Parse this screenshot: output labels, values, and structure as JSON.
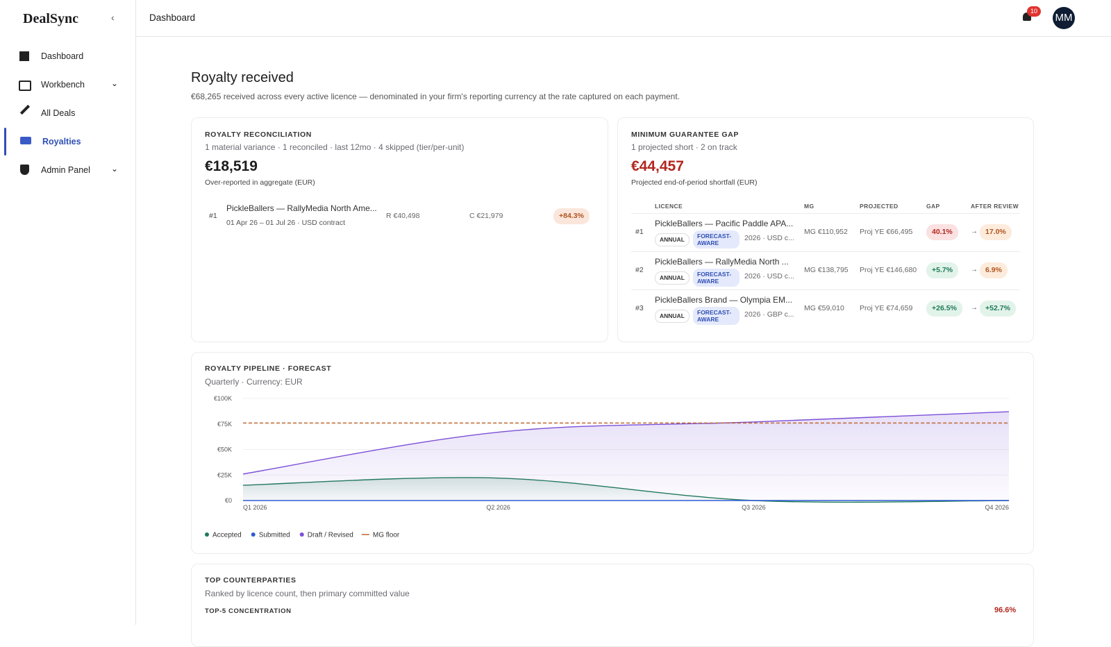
{
  "sidebar": {
    "brand": "DealSync",
    "items": [
      "Dashboard",
      "Workbench",
      "All Deals",
      "Royalties",
      "Admin Panel"
    ]
  },
  "header": {
    "title": "Dashboard",
    "notifications": 10,
    "avatar": "MM"
  },
  "page": {
    "title": "Royalty received",
    "subtitle": "€68,265 received across every active licence — denominated in your firm's reporting currency at the rate captured on each payment."
  },
  "reconciliation": {
    "heading": "ROYALTY RECONCILIATION",
    "summary": "1 material variance · 1 reconciled · last 12mo · 4 skipped (tier/per-unit)",
    "amount": "€18,519",
    "amount_note": "Over-reported in aggregate (EUR)",
    "rows": [
      {
        "rank": "#1",
        "title": "PickleBallers — RallyMedia North Ame...",
        "meta": "01 Apr 26 – 01 Jul 26 · USD contract",
        "reported": "R €40,498",
        "contracted": "C €21,979",
        "variance": "+84.3%"
      }
    ]
  },
  "mg_gap": {
    "heading": "MINIMUM GUARANTEE GAP",
    "summary": "1 projected short · 2 on track",
    "amount": "€44,457",
    "amount_note": "Projected end-of-period shortfall (EUR)",
    "columns": [
      "LICENCE",
      "MG",
      "PROJECTED",
      "GAP",
      "AFTER REVIEW"
    ],
    "rows": [
      {
        "rank": "#1",
        "title": "PickleBallers — Pacific Paddle APA...",
        "badges": [
          "ANNUAL",
          "FORECAST-AWARE"
        ],
        "meta": "2026 · USD c...",
        "mg": "MG €110,952",
        "projected": "Proj YE €66,495",
        "gap": "40.1%",
        "after": "17.0%"
      },
      {
        "rank": "#2",
        "title": "PickleBallers — RallyMedia North ...",
        "badges": [
          "ANNUAL",
          "FORECAST-AWARE"
        ],
        "meta": "2026 · USD c...",
        "mg": "MG €138,795",
        "projected": "Proj YE €146,680",
        "gap": "+5.7%",
        "after": "6.9%"
      },
      {
        "rank": "#3",
        "title": "PickleBallers Brand — Olympia EM...",
        "badges": [
          "ANNUAL",
          "FORECAST-AWARE"
        ],
        "meta": "2026 · GBP c...",
        "mg": "MG €59,010",
        "projected": "Proj YE €74,659",
        "gap": "+26.5%",
        "after": "+52.7%"
      }
    ]
  },
  "chart_data": {
    "type": "line",
    "title": "ROYALTY PIPELINE · FORECAST",
    "subtitle": "Quarterly · Currency: EUR",
    "categories": [
      "Q1 2026",
      "Q2 2026",
      "Q3 2026",
      "Q4 2026"
    ],
    "series": [
      {
        "name": "Accepted",
        "color": "#1f7a5a",
        "values": [
          15000,
          22000,
          0,
          0
        ],
        "area": true
      },
      {
        "name": "Submitted",
        "color": "#2f5bd3",
        "values": [
          0,
          0,
          0,
          0
        ]
      },
      {
        "name": "Draft / Revised",
        "color": "#7b4fd6",
        "values": [
          26000,
          67000,
          77000,
          87000
        ],
        "area": true
      },
      {
        "name": "MG floor",
        "color": "#c0652a",
        "values": [
          76000,
          76000,
          76000,
          76000
        ],
        "dashed": true
      }
    ],
    "ylim": [
      0,
      100000
    ],
    "yticks": [
      {
        "value": 0,
        "label": "€0"
      },
      {
        "value": 25000,
        "label": "€25K"
      },
      {
        "value": 50000,
        "label": "€50K"
      },
      {
        "value": 75000,
        "label": "€75K"
      },
      {
        "value": 100000,
        "label": "€100K"
      }
    ],
    "grid": true
  },
  "counterparties": {
    "heading": "TOP COUNTERPARTIES",
    "subtitle": "Ranked by licence count, then primary committed value",
    "concentration_label": "TOP-5 CONCENTRATION",
    "concentration": "96.6%"
  }
}
